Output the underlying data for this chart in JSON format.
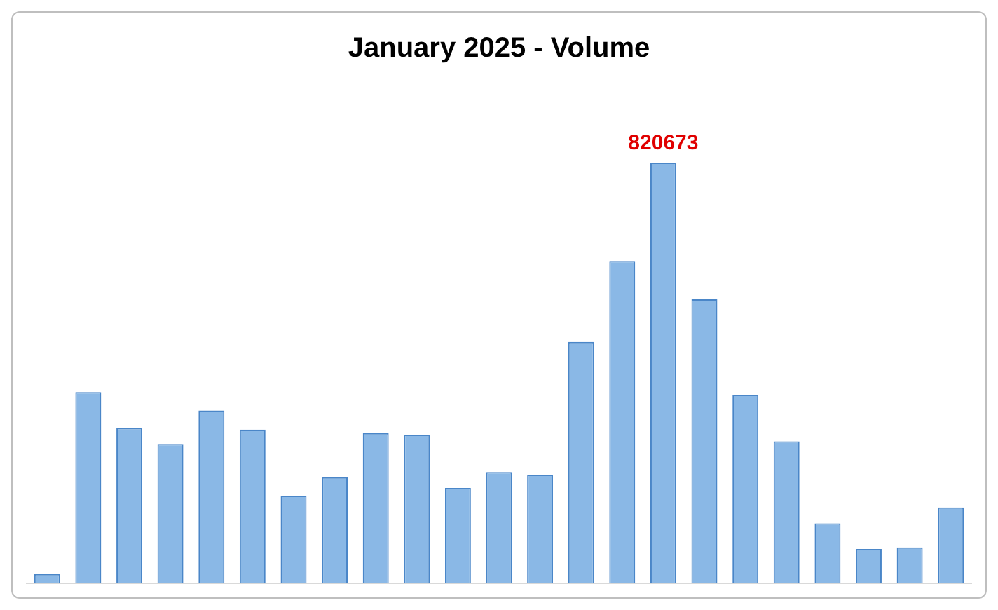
{
  "chart_data": {
    "type": "bar",
    "title": "January 2025 - Volume",
    "categories": [
      null,
      null,
      null,
      null,
      null,
      null,
      null,
      null,
      null,
      null,
      null,
      null,
      null,
      null,
      null,
      null,
      null,
      null,
      null,
      null,
      null,
      null,
      null
    ],
    "values": [
      18000,
      373000,
      303000,
      272000,
      337000,
      300000,
      171000,
      207000,
      293000,
      290000,
      186000,
      217000,
      212000,
      471000,
      629000,
      820673,
      554000,
      368000,
      277000,
      117000,
      67000,
      70000,
      148000
    ],
    "value_labels": [
      null,
      null,
      null,
      null,
      null,
      null,
      null,
      null,
      null,
      null,
      null,
      null,
      null,
      null,
      null,
      "820673",
      null,
      null,
      null,
      null,
      null,
      null,
      null
    ],
    "color": "#8ab8e6",
    "grid": false,
    "legend": false
  }
}
